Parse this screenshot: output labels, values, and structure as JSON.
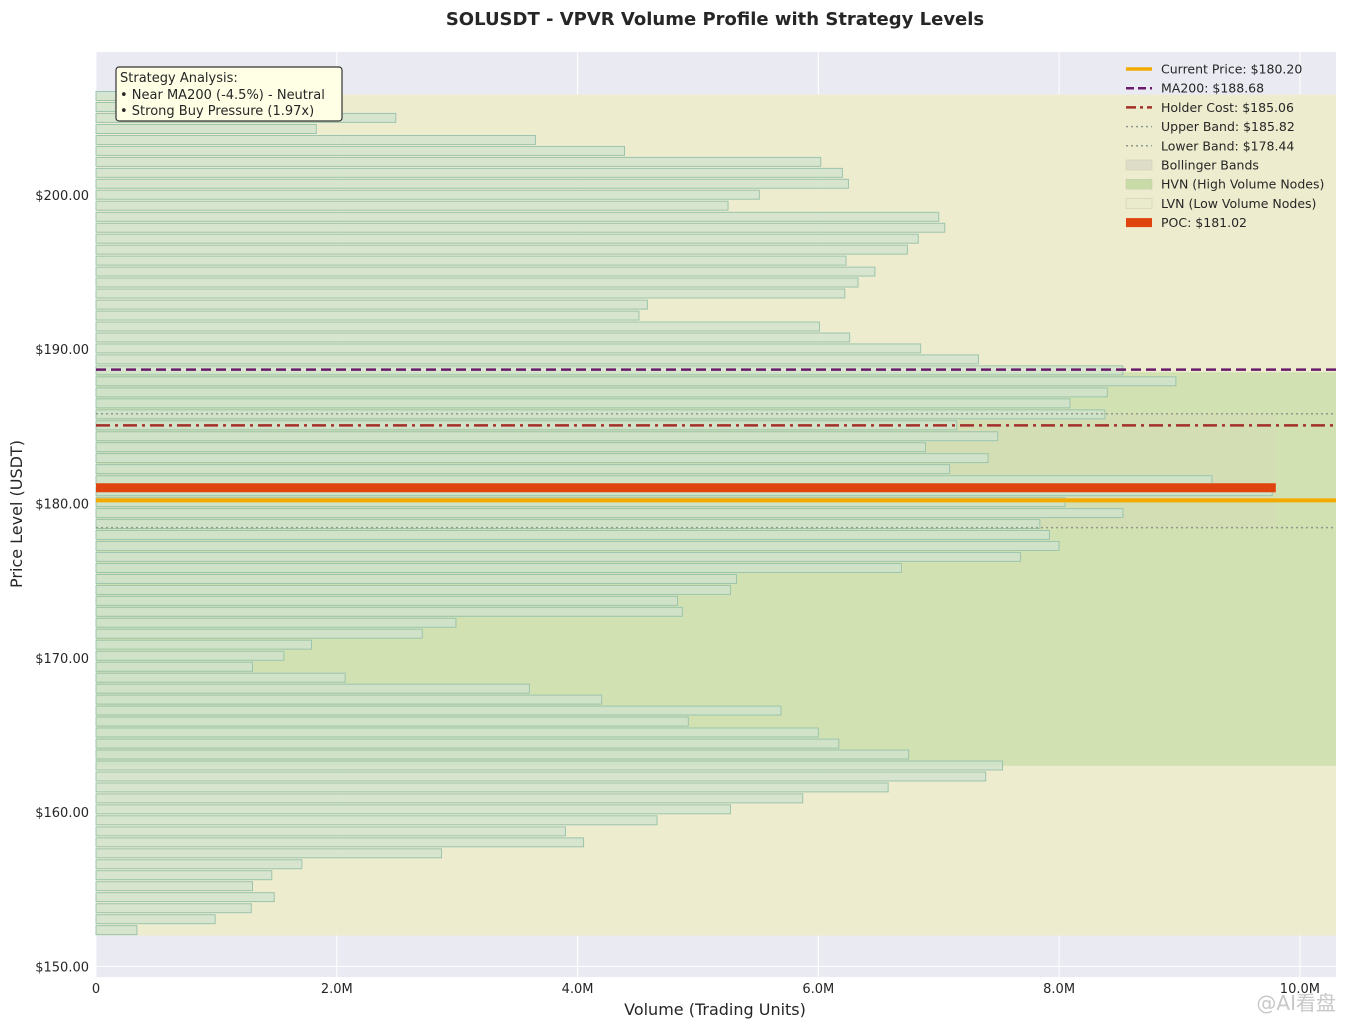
{
  "chart_data": {
    "type": "bar",
    "orientation": "horizontal",
    "title": "SOLUSDT - VPVR Volume Profile with Strategy Levels",
    "xlabel": "Volume (Trading Units)",
    "ylabel": "Price Level (USDT)",
    "xlim": [
      0,
      10300000
    ],
    "ylim": [
      149.4,
      209.3
    ],
    "x_ticks": [
      {
        "value": 0,
        "label": "0"
      },
      {
        "value": 2000000,
        "label": "2.0M"
      },
      {
        "value": 4000000,
        "label": "4.0M"
      },
      {
        "value": 6000000,
        "label": "6.0M"
      },
      {
        "value": 8000000,
        "label": "8.0M"
      },
      {
        "value": 10000000,
        "label": "10.0M"
      }
    ],
    "y_ticks": [
      {
        "value": 150,
        "label": "$150.00"
      },
      {
        "value": 160,
        "label": "$160.00"
      },
      {
        "value": 170,
        "label": "$170.00"
      },
      {
        "value": 180,
        "label": "$180.00"
      },
      {
        "value": 190,
        "label": "$190.00"
      },
      {
        "value": 200,
        "label": "$200.00"
      }
    ],
    "grid": true,
    "legend_position": "top-right",
    "bin_width": 0.71,
    "price_levels": [
      152.35,
      153.06,
      153.77,
      154.49,
      155.2,
      155.91,
      156.62,
      157.33,
      158.04,
      158.75,
      159.47,
      160.18,
      160.89,
      161.6,
      162.31,
      163.02,
      163.73,
      164.44,
      165.16,
      165.87,
      166.58,
      167.29,
      168.0,
      168.71,
      169.42,
      170.13,
      170.85,
      171.56,
      172.27,
      172.98,
      173.69,
      174.4,
      175.11,
      175.82,
      176.54,
      177.25,
      177.96,
      178.67,
      179.38,
      180.09,
      180.8,
      181.51,
      182.23,
      182.94,
      183.65,
      184.36,
      185.07,
      185.78,
      186.49,
      187.2,
      187.92,
      188.63,
      189.34,
      190.05,
      190.76,
      191.47,
      192.18,
      192.89,
      193.61,
      194.32,
      195.03,
      195.74,
      196.45,
      197.16,
      197.87,
      198.58,
      199.3,
      200.01,
      200.72,
      201.43,
      202.14,
      202.85,
      203.56,
      204.27,
      204.99,
      205.7,
      206.41
    ],
    "volumes": [
      340000,
      990000,
      1290000,
      1480000,
      1300000,
      1460000,
      1710000,
      2870000,
      4050000,
      3900000,
      4660000,
      5270000,
      5870000,
      6580000,
      7390000,
      7530000,
      6750000,
      6170000,
      6000000,
      4920000,
      5690000,
      4200000,
      3600000,
      2070000,
      1300000,
      1560000,
      1790000,
      2710000,
      2990000,
      4870000,
      4830000,
      5270000,
      5320000,
      6690000,
      7680000,
      8000000,
      7920000,
      7840000,
      8530000,
      8050000,
      9770000,
      9270000,
      7090000,
      7410000,
      6890000,
      7490000,
      7150000,
      8380000,
      8090000,
      8400000,
      8970000,
      8530000,
      7330000,
      6850000,
      6260000,
      6010000,
      4510000,
      4580000,
      6220000,
      6330000,
      6470000,
      6230000,
      6740000,
      6830000,
      7050000,
      7000000,
      5250000,
      5510000,
      6250000,
      6200000,
      6020000,
      4390000,
      3650000,
      1830000,
      2490000,
      1700000,
      230000
    ],
    "hvn_range": [
      163.0,
      188.5
    ],
    "lvn_range": [
      152.0,
      206.5
    ],
    "bollinger": {
      "upper": 185.82,
      "lower": 178.44
    },
    "levels": {
      "current_price": 180.2,
      "ma200": 188.68,
      "holder_cost": 185.06,
      "upper_band": 185.82,
      "lower_band": 178.44,
      "poc": 181.02
    },
    "legend": [
      {
        "key": "current_price",
        "label": "Current Price: $180.20",
        "style": "solid",
        "color": "#F2A900"
      },
      {
        "key": "ma200",
        "label": "MA200: $188.68",
        "style": "dashed",
        "color": "#6A1B6A"
      },
      {
        "key": "holder_cost",
        "label": "Holder Cost: $185.06",
        "style": "dashdot",
        "color": "#A3312A"
      },
      {
        "key": "upper_band",
        "label": "Upper Band: $185.82",
        "style": "dotted",
        "color": "#8F9A8F"
      },
      {
        "key": "lower_band",
        "label": "Lower Band: $178.44",
        "style": "dotted",
        "color": "#8F9A8F"
      },
      {
        "key": "bollinger",
        "label": "Bollinger Bands",
        "style": "patch",
        "color": "#dedec8"
      },
      {
        "key": "hvn",
        "label": "HVN (High Volume Nodes)",
        "style": "patch",
        "color": "#c8dca8"
      },
      {
        "key": "lvn",
        "label": "LVN (Low Volume Nodes)",
        "style": "patch",
        "color": "#eaeacc"
      },
      {
        "key": "poc",
        "label": "POC: $181.02",
        "style": "thick",
        "color": "#E0440E"
      }
    ],
    "annotation": {
      "lines": [
        "Strategy Analysis:",
        "• Near MA200 (-4.5%) - Neutral",
        "• Strong Buy Pressure (1.97x)"
      ]
    },
    "colors": {
      "plot_bg": "#EAEAF2",
      "bar_fill": "#cfe3cf",
      "bar_edge": "#9cc4ad",
      "lvn_zone": "#eeeccb",
      "hvn_zone": "#cfe0b0",
      "bollinger_zone": "#d6dcb8"
    }
  },
  "watermark": "@AI看盘"
}
